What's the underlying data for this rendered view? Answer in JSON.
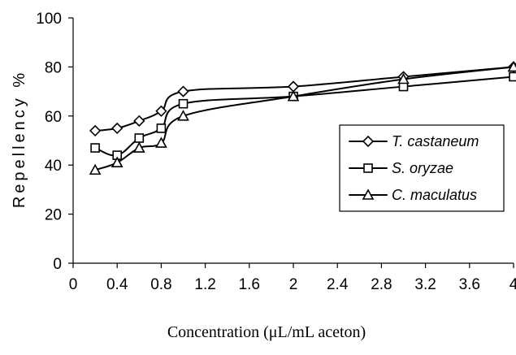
{
  "chart_data": {
    "type": "line",
    "xlabel": "Concentration  (μL/mL aceton)",
    "ylabel": "Repellency %",
    "xlim": [
      0,
      4
    ],
    "ylim": [
      0,
      100
    ],
    "xticks": [
      "0",
      "0.4",
      "0.8",
      "1.2",
      "1.6",
      "2",
      "2.4",
      "2.8",
      "3.2",
      "3.6",
      "4"
    ],
    "yticks": [
      "0",
      "20",
      "40",
      "60",
      "80",
      "100"
    ],
    "grid": false,
    "legend_position": "right",
    "series": [
      {
        "name": "T. castaneum",
        "marker": "diamond",
        "x": [
          0.2,
          0.4,
          0.6,
          0.8,
          1.0,
          2.0,
          3.0,
          4.0
        ],
        "y": [
          54,
          55,
          58,
          62,
          70,
          72,
          76,
          80
        ]
      },
      {
        "name": "S. oryzae",
        "marker": "square",
        "x": [
          0.2,
          0.4,
          0.6,
          0.8,
          1.0,
          2.0,
          3.0,
          4.0
        ],
        "y": [
          47,
          44,
          51,
          55,
          65,
          68,
          72,
          76
        ]
      },
      {
        "name": "C. maculatus",
        "marker": "triangle",
        "x": [
          0.2,
          0.4,
          0.6,
          0.8,
          1.0,
          2.0,
          3.0,
          4.0
        ],
        "y": [
          38,
          41,
          47,
          49,
          60,
          68,
          75,
          80
        ]
      }
    ]
  }
}
